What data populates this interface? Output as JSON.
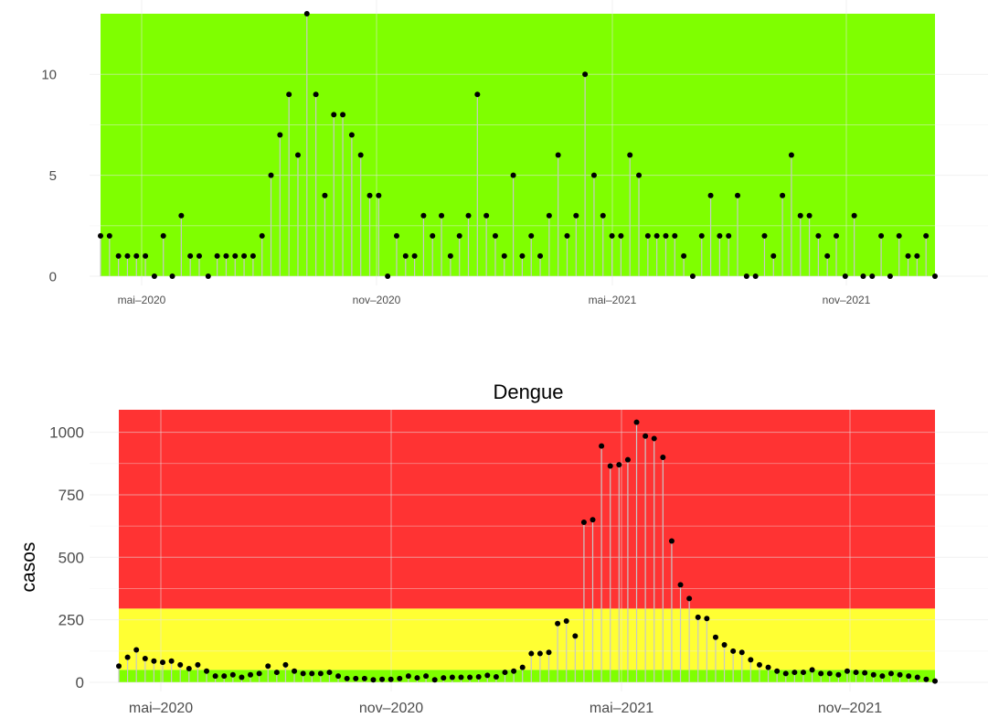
{
  "chart_data": [
    {
      "type": "lollipop",
      "title": "",
      "xlabel": "",
      "ylabel": "",
      "x_tick_labels": [
        "mai–2020",
        "nov–2020",
        "mai–2021",
        "nov–2021"
      ],
      "y_ticks": [
        0,
        5,
        10
      ],
      "ylim": [
        0,
        13
      ],
      "grid": true,
      "bands": [
        {
          "from": 0,
          "to": 13,
          "color": "#7fff00"
        }
      ],
      "values": [
        2,
        2,
        1,
        1,
        1,
        1,
        0,
        2,
        0,
        3,
        1,
        1,
        0,
        1,
        1,
        1,
        1,
        1,
        2,
        5,
        7,
        9,
        6,
        13,
        9,
        4,
        8,
        8,
        7,
        6,
        4,
        4,
        0,
        2,
        1,
        1,
        3,
        2,
        3,
        1,
        2,
        3,
        9,
        3,
        2,
        1,
        5,
        1,
        2,
        1,
        3,
        6,
        2,
        3,
        10,
        5,
        3,
        2,
        2,
        6,
        5,
        2,
        2,
        2,
        2,
        1,
        0,
        2,
        4,
        2,
        2,
        4,
        0,
        0,
        2,
        1,
        4,
        6,
        3,
        3,
        2,
        1,
        2,
        0,
        3,
        0,
        0,
        2,
        0,
        2,
        1,
        1,
        2,
        0
      ]
    },
    {
      "type": "lollipop",
      "title": "Dengue",
      "xlabel": "",
      "ylabel": "casos",
      "x_tick_labels": [
        "mai–2020",
        "nov–2020",
        "mai–2021",
        "nov–2021"
      ],
      "y_ticks": [
        0,
        250,
        500,
        750,
        1000
      ],
      "ylim": [
        0,
        1090
      ],
      "grid": true,
      "bands": [
        {
          "from": 0,
          "to": 50,
          "color": "#7fff00"
        },
        {
          "from": 50,
          "to": 295,
          "color": "#ffff33"
        },
        {
          "from": 295,
          "to": 1090,
          "color": "#ff3333"
        }
      ],
      "values": [
        65,
        100,
        130,
        95,
        85,
        80,
        85,
        70,
        55,
        70,
        45,
        25,
        25,
        30,
        20,
        30,
        35,
        65,
        40,
        70,
        45,
        35,
        35,
        35,
        40,
        25,
        15,
        15,
        15,
        10,
        12,
        12,
        15,
        25,
        18,
        25,
        10,
        18,
        20,
        20,
        20,
        22,
        28,
        22,
        40,
        45,
        60,
        115,
        115,
        120,
        235,
        245,
        185,
        640,
        650,
        945,
        865,
        870,
        890,
        1040,
        985,
        975,
        900,
        565,
        390,
        335,
        260,
        255,
        180,
        150,
        125,
        120,
        90,
        70,
        60,
        45,
        35,
        40,
        40,
        50,
        35,
        35,
        30,
        45,
        40,
        38,
        30,
        25,
        35,
        30,
        25,
        20,
        12,
        5
      ]
    }
  ]
}
